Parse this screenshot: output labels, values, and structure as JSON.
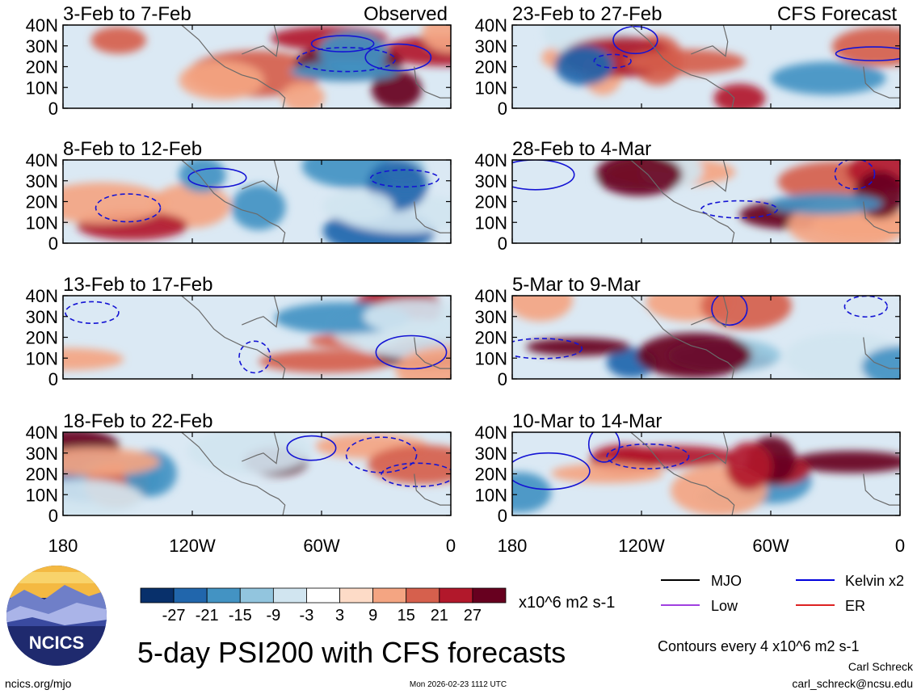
{
  "chart_data": {
    "type": "heatmap",
    "title": "5-day PSI200 with CFS forecasts",
    "variable": "PSI200",
    "units": "x10^6 m2 s-1",
    "x_ticks": [
      "180",
      "120W",
      "60W",
      "0"
    ],
    "y_ticks": [
      "40N",
      "30N",
      "20N",
      "10N",
      "0"
    ],
    "xlim": [
      -180,
      0
    ],
    "ylim": [
      0,
      40
    ],
    "colorbar": {
      "labels": [
        "-27",
        "-21",
        "-15",
        "-9",
        "-3",
        "3",
        "9",
        "15",
        "21",
        "27"
      ],
      "colors": [
        "#08306b",
        "#2166ac",
        "#4393c3",
        "#92c5de",
        "#d1e5f0",
        "#ffffff",
        "#fddbc7",
        "#f4a582",
        "#d6604d",
        "#b2182b",
        "#67001f"
      ]
    },
    "columns": [
      {
        "label": "Observed"
      },
      {
        "label": "CFS Forecast"
      }
    ],
    "panels": [
      {
        "period": "3-Feb to 7-Feb",
        "source": "Observed"
      },
      {
        "period": "8-Feb to 12-Feb",
        "source": "Observed"
      },
      {
        "period": "13-Feb to 17-Feb",
        "source": "Observed"
      },
      {
        "period": "18-Feb to 22-Feb",
        "source": "Observed"
      },
      {
        "period": "23-Feb to 27-Feb",
        "source": "CFS Forecast"
      },
      {
        "period": "28-Feb to 4-Mar",
        "source": "CFS Forecast"
      },
      {
        "period": "5-Mar to 9-Mar",
        "source": "CFS Forecast"
      },
      {
        "period": "10-Mar to 14-Mar",
        "source": "CFS Forecast"
      }
    ],
    "contour_legend": [
      {
        "label": "MJO",
        "color": "#000000"
      },
      {
        "label": "Kelvin x2",
        "color": "#0000dd"
      },
      {
        "label": "Low",
        "color": "#a040e0"
      },
      {
        "label": "ER",
        "color": "#dd2222"
      }
    ],
    "contour_note": "Contours every 4 x10^6 m2 s-1"
  },
  "footer": {
    "logo_text": "NCICS",
    "website": "ncics.org/mjo",
    "timestamp": "Mon 2026-02-23 1112 UTC",
    "author": "Carl Schreck",
    "email": "carl_schreck@ncsu.edu"
  }
}
